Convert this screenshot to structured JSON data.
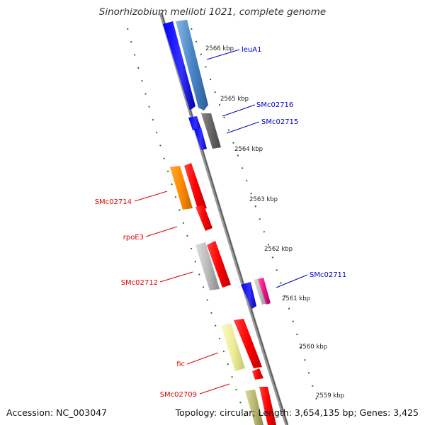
{
  "title": "Sinorhizobium meliloti 1021, complete genome",
  "footer": {
    "accession": "Accession: NC_003047",
    "topology": "Topology: circular; Length: 3,654,135 bp; Genes: 3,425"
  },
  "colors": {
    "backbone": "#888888",
    "tick": "#1a7a1a",
    "forward_label": "#0000cc",
    "reverse_label": "#dd0000"
  },
  "ticks": [
    "2566 kbp",
    "2565 kbp",
    "2564 kbp",
    "2563 kbp",
    "2562 kbp",
    "2561 kbp",
    "2560 kbp",
    "2559 kbp"
  ],
  "gene_labels": [
    {
      "name": "leuA1",
      "strand": "forward"
    },
    {
      "name": "SMc02716",
      "strand": "forward"
    },
    {
      "name": "SMc02715",
      "strand": "forward"
    },
    {
      "name": "SMc02714",
      "strand": "reverse"
    },
    {
      "name": "rpoE3",
      "strand": "reverse"
    },
    {
      "name": "SMc02712",
      "strand": "reverse"
    },
    {
      "name": "SMc02711",
      "strand": "forward"
    },
    {
      "name": "fic",
      "strand": "reverse"
    },
    {
      "name": "SMc02709",
      "strand": "reverse"
    }
  ],
  "feature_colors": [
    "#0000ff",
    "#4a86c8",
    "#666666",
    "#ff8800",
    "#ff0000",
    "#bbbbbb",
    "#ee1188",
    "#eeee99",
    "#b8b870"
  ]
}
